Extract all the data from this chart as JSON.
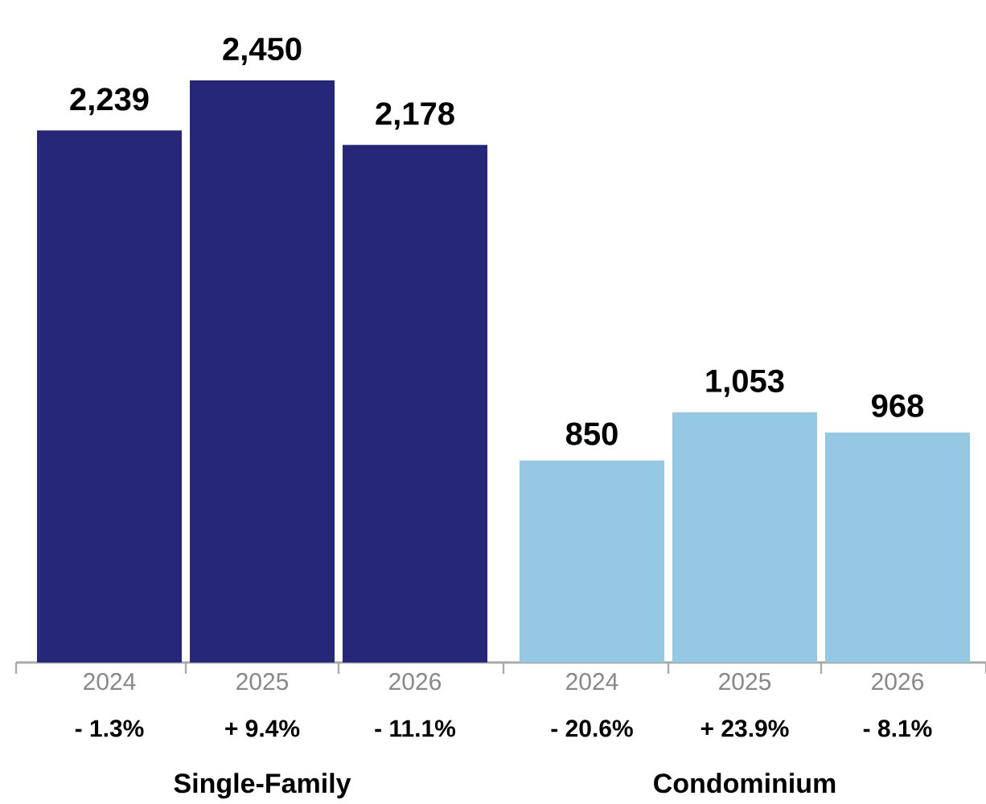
{
  "chart_data": {
    "type": "bar",
    "categories": [
      "2024",
      "2025",
      "2026",
      "2024",
      "2025",
      "2026"
    ],
    "values": [
      2239,
      2450,
      2178,
      850,
      1053,
      968
    ],
    "value_labels": [
      "2,239",
      "2,450",
      "2,178",
      "850",
      "1,053",
      "968"
    ],
    "colors": [
      "#27277a",
      "#27277a",
      "#27277a",
      "#95c8e2",
      "#95c8e2",
      "#95c8e2"
    ],
    "annotations": [
      "- 1.3%",
      "+ 9.4%",
      "- 11.1%",
      "- 20.6%",
      "+ 23.9%",
      "- 8.1%",
      "Single-Family",
      "Condominium"
    ]
  }
}
